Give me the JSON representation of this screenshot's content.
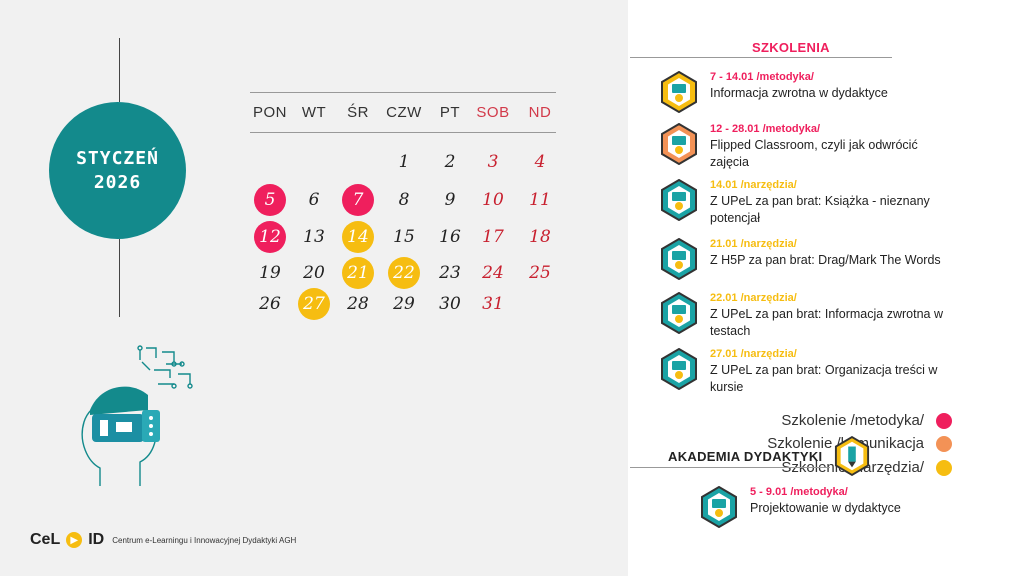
{
  "month": {
    "line1": "STYCZEŃ",
    "line2": "2026"
  },
  "weekdays": [
    {
      "label": "PON",
      "weekend": false
    },
    {
      "label": "WT",
      "weekend": false
    },
    {
      "label": "ŚR",
      "weekend": false
    },
    {
      "label": "CZW",
      "weekend": false
    },
    {
      "label": "PT",
      "weekend": false
    },
    {
      "label": "SOB",
      "weekend": true
    },
    {
      "label": "ND",
      "weekend": true
    }
  ],
  "days": [
    {
      "n": "1",
      "col": 3,
      "row": 0,
      "mark": null
    },
    {
      "n": "2",
      "col": 4,
      "row": 0,
      "mark": null
    },
    {
      "n": "3",
      "col": 5,
      "row": 0,
      "mark": null
    },
    {
      "n": "4",
      "col": 6,
      "row": 0,
      "mark": null
    },
    {
      "n": "5",
      "col": 0,
      "row": 1,
      "mark": "metodyka"
    },
    {
      "n": "6",
      "col": 1,
      "row": 1,
      "mark": null
    },
    {
      "n": "7",
      "col": 2,
      "row": 1,
      "mark": "metodyka"
    },
    {
      "n": "8",
      "col": 3,
      "row": 1,
      "mark": null
    },
    {
      "n": "9",
      "col": 4,
      "row": 1,
      "mark": null
    },
    {
      "n": "10",
      "col": 5,
      "row": 1,
      "mark": null
    },
    {
      "n": "11",
      "col": 6,
      "row": 1,
      "mark": null
    },
    {
      "n": "12",
      "col": 0,
      "row": 2,
      "mark": "metodyka"
    },
    {
      "n": "13",
      "col": 1,
      "row": 2,
      "mark": null
    },
    {
      "n": "14",
      "col": 2,
      "row": 2,
      "mark": "narzedzia"
    },
    {
      "n": "15",
      "col": 3,
      "row": 2,
      "mark": null
    },
    {
      "n": "16",
      "col": 4,
      "row": 2,
      "mark": null
    },
    {
      "n": "17",
      "col": 5,
      "row": 2,
      "mark": null
    },
    {
      "n": "18",
      "col": 6,
      "row": 2,
      "mark": null
    },
    {
      "n": "19",
      "col": 0,
      "row": 3,
      "mark": null
    },
    {
      "n": "20",
      "col": 1,
      "row": 3,
      "mark": null
    },
    {
      "n": "21",
      "col": 2,
      "row": 3,
      "mark": "narzedzia"
    },
    {
      "n": "22",
      "col": 3,
      "row": 3,
      "mark": "narzedzia"
    },
    {
      "n": "23",
      "col": 4,
      "row": 3,
      "mark": null
    },
    {
      "n": "24",
      "col": 5,
      "row": 3,
      "mark": null
    },
    {
      "n": "25",
      "col": 6,
      "row": 3,
      "mark": null
    },
    {
      "n": "26",
      "col": 0,
      "row": 4,
      "mark": null
    },
    {
      "n": "27",
      "col": 1,
      "row": 4,
      "mark": "narzedzia"
    },
    {
      "n": "28",
      "col": 2,
      "row": 4,
      "mark": null
    },
    {
      "n": "29",
      "col": 3,
      "row": 4,
      "mark": null
    },
    {
      "n": "30",
      "col": 4,
      "row": 4,
      "mark": null
    },
    {
      "n": "31",
      "col": 5,
      "row": 4,
      "mark": null
    }
  ],
  "legend": [
    {
      "label": "Szkolenie /metodyka/",
      "color": "#ef1f5d"
    },
    {
      "label": "Szkolenie /komunikacja",
      "color": "#f39256"
    },
    {
      "label": "Szkolenie /narzędzia/",
      "color": "#f6bd11"
    }
  ],
  "brand": {
    "name_left": "CeL",
    "name_right": "ID",
    "subtitle": "Centrum e-Learningu i Innowacyjnej Dydaktyki AGH"
  },
  "trainings": {
    "title": "SZKOLENIA",
    "items": [
      {
        "date": "7 - 14.01  /metodyka/",
        "title": "Informacja zwrotna w dydaktyce",
        "color": "#ef1f5d",
        "icon": "feedback-badge-icon",
        "hex": "#f6bd11"
      },
      {
        "date": "12 - 28.01  /metodyka/",
        "title": "Flipped Classroom, czyli jak odwrócić zajęcia",
        "color": "#ef1f5d",
        "icon": "classroom-badge-icon",
        "hex": "#f39256"
      },
      {
        "date": "14.01  /narzędzia/",
        "title": "Z UPeL za pan brat: Książka - nieznany potencjał",
        "color": "#f6bd11",
        "icon": "upel-badge-icon",
        "hex": "#1aa3a5"
      },
      {
        "date": "21.01  /narzędzia/",
        "title": "Z H5P za pan brat: Drag/Mark The Words",
        "color": "#f6bd11",
        "icon": "h5p-badge-icon",
        "hex": "#1aa3a5"
      },
      {
        "date": "22.01  /narzędzia/",
        "title": "Z UPeL za pan brat: Informacja zwrotna w testach",
        "color": "#f6bd11",
        "icon": "upel-badge-icon",
        "hex": "#1aa3a5"
      },
      {
        "date": "27.01  /narzędzia/",
        "title": "Z UPeL za pan brat: Organizacja treści w kursie",
        "color": "#f6bd11",
        "icon": "upel-badge-icon",
        "hex": "#1aa3a5"
      }
    ]
  },
  "academy": {
    "title": "AKADEMIA DYDAKTYKI",
    "items": [
      {
        "date": "5 - 9.01 /metodyka/",
        "title": "Projektowanie w dydaktyce",
        "color": "#ef1f5d",
        "icon": "design-badge-icon",
        "hex": "#1aa3a5"
      }
    ]
  }
}
